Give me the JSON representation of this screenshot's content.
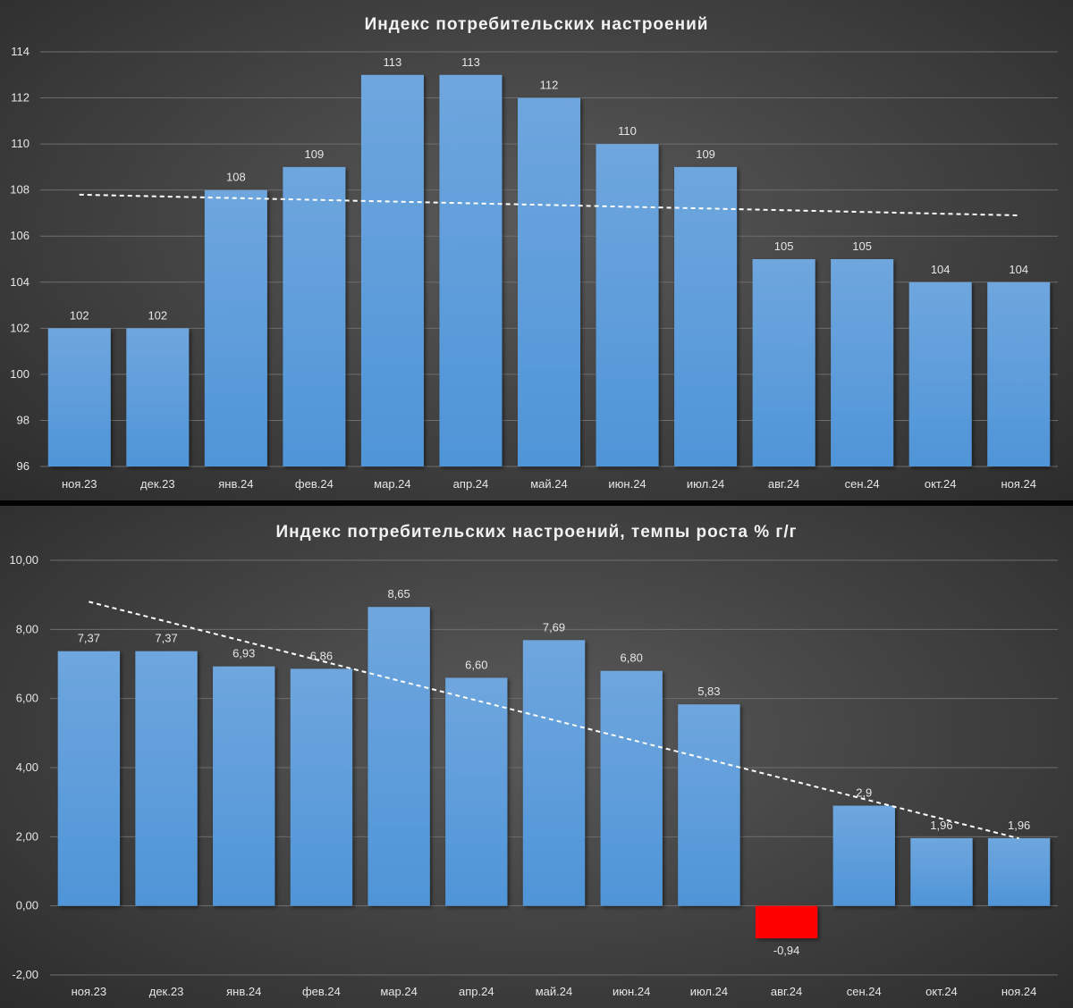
{
  "colors": {
    "bar": "#4f95d8",
    "bar_top": "#6fa6de",
    "negative": "#ff0000",
    "trend": "#ffffff",
    "grid": "#6e6e6e"
  },
  "chart_data": [
    {
      "type": "bar",
      "title": "Индекс потребительских настроений",
      "categories": [
        "ноя.23",
        "дек.23",
        "янв.24",
        "фев.24",
        "мар.24",
        "апр.24",
        "май.24",
        "июн.24",
        "июл.24",
        "авг.24",
        "сен.24",
        "окт.24",
        "ноя.24"
      ],
      "values": [
        102,
        102,
        108,
        109,
        113,
        113,
        112,
        110,
        109,
        105,
        105,
        104,
        104
      ],
      "value_labels": [
        "102",
        "102",
        "108",
        "109",
        "113",
        "113",
        "112",
        "110",
        "109",
        "105",
        "105",
        "104",
        "104"
      ],
      "ylim": [
        96,
        114
      ],
      "yticks": [
        "96",
        "98",
        "100",
        "102",
        "104",
        "106",
        "108",
        "110",
        "112",
        "114"
      ],
      "trendline": {
        "start": 107.8,
        "end": 106.9
      },
      "grid": true,
      "xlabel": "",
      "ylabel": ""
    },
    {
      "type": "bar",
      "title": "Индекс потребительских настроений, темпы роста % г/г",
      "categories": [
        "ноя.23",
        "дек.23",
        "янв.24",
        "фев.24",
        "мар.24",
        "апр.24",
        "май.24",
        "июн.24",
        "июл.24",
        "авг.24",
        "сен.24",
        "окт.24",
        "ноя.24"
      ],
      "values": [
        7.37,
        7.37,
        6.93,
        6.86,
        8.65,
        6.6,
        7.69,
        6.8,
        5.83,
        -0.94,
        2.9,
        1.96,
        1.96
      ],
      "value_labels": [
        "7,37",
        "7,37",
        "6,93",
        "6,86",
        "8,65",
        "6,60",
        "7,69",
        "6,80",
        "5,83",
        "-0,94",
        "2,9",
        "1,96",
        "1,96"
      ],
      "ylim": [
        -2,
        10
      ],
      "yticks": [
        "-2,00",
        "0,00",
        "2,00",
        "4,00",
        "6,00",
        "8,00",
        "10,00"
      ],
      "trendline": {
        "start": 8.8,
        "end": 1.95
      },
      "grid": true,
      "xlabel": "",
      "ylabel": ""
    }
  ]
}
